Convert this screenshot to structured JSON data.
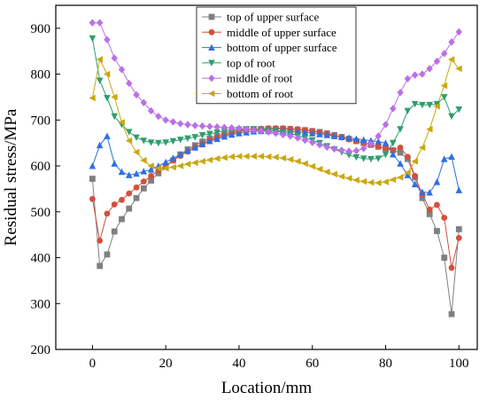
{
  "chart_data": {
    "type": "line",
    "xlabel": "Location/mm",
    "ylabel": "Residual stress/MPa",
    "xlim": [
      -10,
      105
    ],
    "ylim": [
      200,
      950
    ],
    "xticks": [
      0,
      20,
      40,
      60,
      80,
      100
    ],
    "yticks": [
      200,
      300,
      400,
      500,
      600,
      700,
      800,
      900
    ],
    "legend_position": "top-center",
    "grid": false,
    "series": [
      {
        "name": "top of upper surface",
        "color": "#808080",
        "marker": "square",
        "x": [
          0,
          2,
          4,
          6,
          8,
          10,
          12,
          14,
          16,
          18,
          20,
          22,
          24,
          26,
          28,
          30,
          32,
          34,
          36,
          38,
          40,
          42,
          44,
          46,
          48,
          50,
          52,
          54,
          56,
          58,
          60,
          62,
          64,
          66,
          68,
          70,
          72,
          74,
          76,
          78,
          80,
          82,
          84,
          86,
          88,
          90,
          92,
          94,
          96,
          98,
          100
        ],
        "y": [
          572,
          382,
          407,
          457,
          484,
          507,
          530,
          551,
          568,
          584,
          598,
          612,
          625,
          636,
          645,
          653,
          660,
          665,
          670,
          674,
          677,
          679,
          680,
          680,
          681,
          681,
          681,
          680,
          679,
          678,
          676,
          674,
          671,
          667,
          663,
          659,
          654,
          650,
          646,
          642,
          638,
          634,
          629,
          615,
          575,
          530,
          495,
          458,
          400,
          277,
          462
        ]
      },
      {
        "name": "middle of upper surface",
        "color": "#d2503c",
        "marker": "circle",
        "x": [
          0,
          2,
          4,
          6,
          8,
          10,
          12,
          14,
          16,
          18,
          20,
          22,
          24,
          26,
          28,
          30,
          32,
          34,
          36,
          38,
          40,
          42,
          44,
          46,
          48,
          50,
          52,
          54,
          56,
          58,
          60,
          62,
          64,
          66,
          68,
          70,
          72,
          74,
          76,
          78,
          80,
          82,
          84,
          86,
          88,
          90,
          92,
          94,
          96,
          98,
          100
        ],
        "y": [
          528,
          437,
          496,
          516,
          526,
          540,
          553,
          566,
          578,
          590,
          601,
          612,
          622,
          631,
          640,
          648,
          656,
          662,
          667,
          671,
          675,
          678,
          680,
          681,
          682,
          682,
          682,
          681,
          680,
          678,
          676,
          673,
          670,
          666,
          662,
          658,
          654,
          650,
          646,
          642,
          638,
          634,
          640,
          620,
          578,
          538,
          505,
          515,
          487,
          378,
          443
        ]
      },
      {
        "name": "bottom of upper surface",
        "color": "#2f6fe0",
        "marker": "triangle-up",
        "x": [
          0,
          2,
          4,
          6,
          8,
          10,
          12,
          14,
          16,
          18,
          20,
          22,
          24,
          26,
          28,
          30,
          32,
          34,
          36,
          38,
          40,
          42,
          44,
          46,
          48,
          50,
          52,
          54,
          56,
          58,
          60,
          62,
          64,
          66,
          68,
          70,
          72,
          74,
          76,
          78,
          80,
          82,
          84,
          86,
          88,
          90,
          92,
          94,
          96,
          98,
          100
        ],
        "y": [
          600,
          645,
          665,
          605,
          587,
          580,
          583,
          588,
          592,
          600,
          608,
          617,
          625,
          633,
          640,
          647,
          654,
          659,
          664,
          668,
          671,
          673,
          675,
          676,
          676,
          676,
          676,
          675,
          674,
          673,
          671,
          669,
          667,
          665,
          663,
          661,
          659,
          657,
          655,
          653,
          650,
          625,
          605,
          580,
          560,
          543,
          542,
          565,
          615,
          620,
          547
        ]
      },
      {
        "name": "top of root",
        "color": "#2e9e6e",
        "marker": "triangle-down",
        "x": [
          0,
          2,
          4,
          6,
          8,
          10,
          12,
          14,
          16,
          18,
          20,
          22,
          24,
          26,
          28,
          30,
          32,
          34,
          36,
          38,
          40,
          42,
          44,
          46,
          48,
          50,
          52,
          54,
          56,
          58,
          60,
          62,
          64,
          66,
          68,
          70,
          72,
          74,
          76,
          78,
          80,
          82,
          84,
          86,
          88,
          90,
          92,
          94,
          96,
          98,
          100
        ],
        "y": [
          878,
          786,
          748,
          708,
          690,
          674,
          662,
          655,
          651,
          650,
          651,
          654,
          657,
          660,
          663,
          667,
          670,
          673,
          676,
          678,
          679,
          680,
          680,
          679,
          678,
          676,
          673,
          670,
          666,
          661,
          656,
          650,
          643,
          636,
          630,
          624,
          619,
          616,
          615,
          616,
          625,
          650,
          680,
          720,
          735,
          733,
          733,
          735,
          750,
          708,
          723
        ]
      },
      {
        "name": "middle of root",
        "color": "#bb6fe6",
        "marker": "diamond",
        "x": [
          0,
          2,
          4,
          6,
          8,
          10,
          12,
          14,
          16,
          18,
          20,
          22,
          24,
          26,
          28,
          30,
          32,
          34,
          36,
          38,
          40,
          42,
          44,
          46,
          48,
          50,
          52,
          54,
          56,
          58,
          60,
          62,
          64,
          66,
          68,
          70,
          72,
          74,
          76,
          78,
          80,
          82,
          84,
          86,
          88,
          90,
          92,
          94,
          96,
          98,
          100
        ],
        "y": [
          912,
          912,
          875,
          835,
          810,
          780,
          755,
          738,
          720,
          708,
          700,
          696,
          692,
          690,
          688,
          687,
          686,
          685,
          684,
          683,
          682,
          680,
          678,
          676,
          674,
          671,
          668,
          665,
          661,
          656,
          651,
          646,
          641,
          637,
          634,
          632,
          633,
          638,
          648,
          665,
          690,
          725,
          760,
          790,
          798,
          800,
          812,
          828,
          845,
          870,
          892
        ]
      },
      {
        "name": "bottom of root",
        "color": "#c9a80c",
        "marker": "triangle-left",
        "x": [
          0,
          2,
          4,
          6,
          8,
          10,
          12,
          14,
          16,
          18,
          20,
          22,
          24,
          26,
          28,
          30,
          32,
          34,
          36,
          38,
          40,
          42,
          44,
          46,
          48,
          50,
          52,
          54,
          56,
          58,
          60,
          62,
          64,
          66,
          68,
          70,
          72,
          74,
          76,
          78,
          80,
          82,
          84,
          86,
          88,
          90,
          92,
          94,
          96,
          98,
          100
        ],
        "y": [
          748,
          832,
          800,
          750,
          695,
          655,
          630,
          612,
          600,
          595,
          595,
          597,
          600,
          604,
          607,
          610,
          613,
          616,
          618,
          620,
          621,
          621,
          621,
          621,
          620,
          619,
          617,
          614,
          610,
          605,
          599,
          593,
          587,
          582,
          577,
          573,
          569,
          566,
          564,
          563,
          565,
          570,
          575,
          585,
          610,
          640,
          680,
          730,
          775,
          832,
          812
        ]
      }
    ]
  }
}
